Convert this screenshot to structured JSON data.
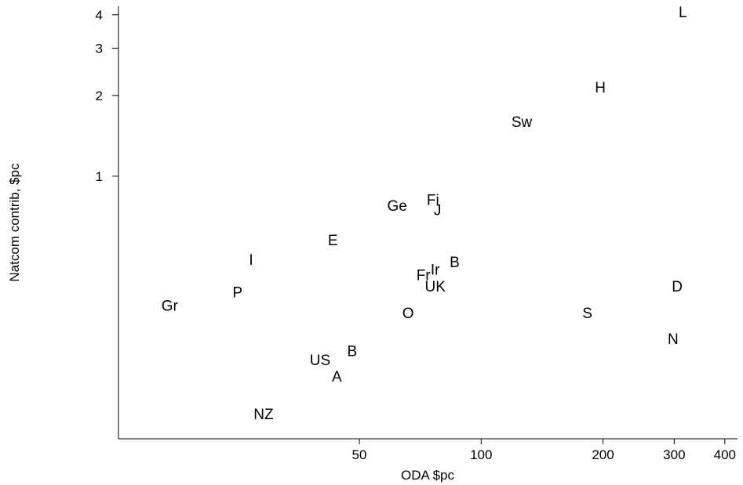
{
  "chart_data": {
    "type": "scatter",
    "title": "",
    "xlabel": "ODA $pc",
    "ylabel": "Natcom contrib, $pc",
    "x_scale": "log",
    "y_scale": "log",
    "xlim": [
      12.7,
      430
    ],
    "ylim": [
      0.105,
      4.3
    ],
    "x_ticks": [
      50,
      100,
      200,
      300,
      400
    ],
    "y_ticks": [
      1,
      2,
      3,
      4
    ],
    "grid": false,
    "points": [
      {
        "label": "L",
        "x": 315,
        "y": 4.1
      },
      {
        "label": "H",
        "x": 197,
        "y": 2.15
      },
      {
        "label": "Sw",
        "x": 126,
        "y": 1.6
      },
      {
        "label": "Ge",
        "x": 62,
        "y": 0.78
      },
      {
        "label": "Fi",
        "x": 76,
        "y": 0.82
      },
      {
        "label": "J",
        "x": 78,
        "y": 0.75
      },
      {
        "label": "E",
        "x": 43,
        "y": 0.58
      },
      {
        "label": "I",
        "x": 27,
        "y": 0.49
      },
      {
        "label": "B",
        "x": 86,
        "y": 0.48
      },
      {
        "label": "Ir",
        "x": 77,
        "y": 0.45
      },
      {
        "label": "Fr",
        "x": 72,
        "y": 0.43
      },
      {
        "label": "UK",
        "x": 77,
        "y": 0.39
      },
      {
        "label": "D",
        "x": 305,
        "y": 0.39
      },
      {
        "label": "P",
        "x": 25,
        "y": 0.37
      },
      {
        "label": "Gr",
        "x": 17,
        "y": 0.33
      },
      {
        "label": "O",
        "x": 66,
        "y": 0.31
      },
      {
        "label": "S",
        "x": 183,
        "y": 0.31
      },
      {
        "label": "N",
        "x": 298,
        "y": 0.248
      },
      {
        "label": "B",
        "x": 48,
        "y": 0.224
      },
      {
        "label": "US",
        "x": 40,
        "y": 0.207
      },
      {
        "label": "A",
        "x": 44,
        "y": 0.18
      },
      {
        "label": "NZ",
        "x": 29,
        "y": 0.13
      }
    ]
  }
}
